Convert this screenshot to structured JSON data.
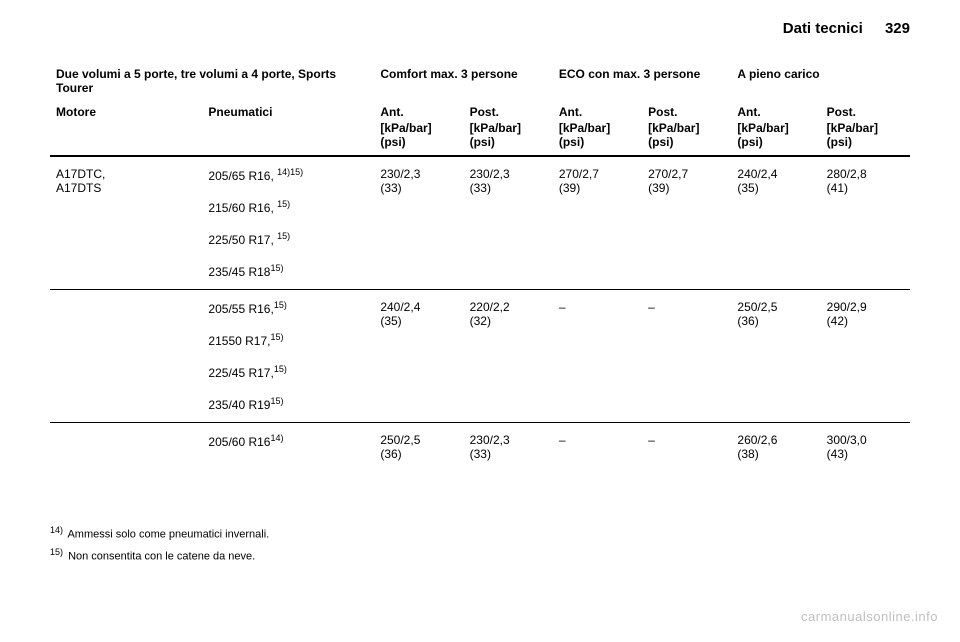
{
  "header": {
    "section_title": "Dati tecnici",
    "page_number": "329"
  },
  "table": {
    "title_col1": "Due volumi a 5 porte, tre volumi a 4 porte, Sports Tourer",
    "group_comfort": "Comfort max. 3 persone",
    "group_eco": "ECO con max. 3 persone",
    "group_full": "A pieno carico",
    "sub_engine": "Motore",
    "sub_tyres": "Pneumatici",
    "sub_front": "Ant.",
    "sub_rear": "Post.",
    "unit": "[kPa/bar] (psi)",
    "rows": [
      {
        "engine": "A17DTC,\nA17DTS",
        "tyres": [
          {
            "text": "205/65 R16, ",
            "sup": "14)15)"
          },
          {
            "text": "215/60 R16, ",
            "sup": "15)"
          },
          {
            "text": "225/50 R17, ",
            "sup": "15)"
          },
          {
            "text": "235/45 R18",
            "sup": "15)"
          }
        ],
        "comfort_f": "230/2,3 (33)",
        "comfort_r": "230/2,3 (33)",
        "eco_f": "270/2,7 (39)",
        "eco_r": "270/2,7 (39)",
        "full_f": "240/2,4 (35)",
        "full_r": "280/2,8 (41)"
      },
      {
        "engine": "",
        "tyres": [
          {
            "text": "205/55 R16,",
            "sup": "15)"
          },
          {
            "text": "21550 R17,",
            "sup": "15)"
          },
          {
            "text": "225/45 R17,",
            "sup": "15)"
          },
          {
            "text": "235/40 R19",
            "sup": "15)"
          }
        ],
        "comfort_f": "240/2,4 (35)",
        "comfort_r": "220/2,2 (32)",
        "eco_f": "–",
        "eco_r": "–",
        "full_f": "250/2,5 (36)",
        "full_r": "290/2,9 (42)"
      },
      {
        "engine": "",
        "tyres": [
          {
            "text": "205/60 R16",
            "sup": "14)"
          }
        ],
        "comfort_f": "250/2,5 (36)",
        "comfort_r": "230/2,3 (33)",
        "eco_f": "–",
        "eco_r": "–",
        "full_f": "260/2,6 (38)",
        "full_r": "300/3,0 (43)"
      }
    ]
  },
  "footnotes": [
    {
      "num": "14)",
      "text": "Ammessi solo come pneumatici invernali."
    },
    {
      "num": "15)",
      "text": "Non consentita con le catene da neve."
    }
  ],
  "watermark": "carmanualsonline.info"
}
